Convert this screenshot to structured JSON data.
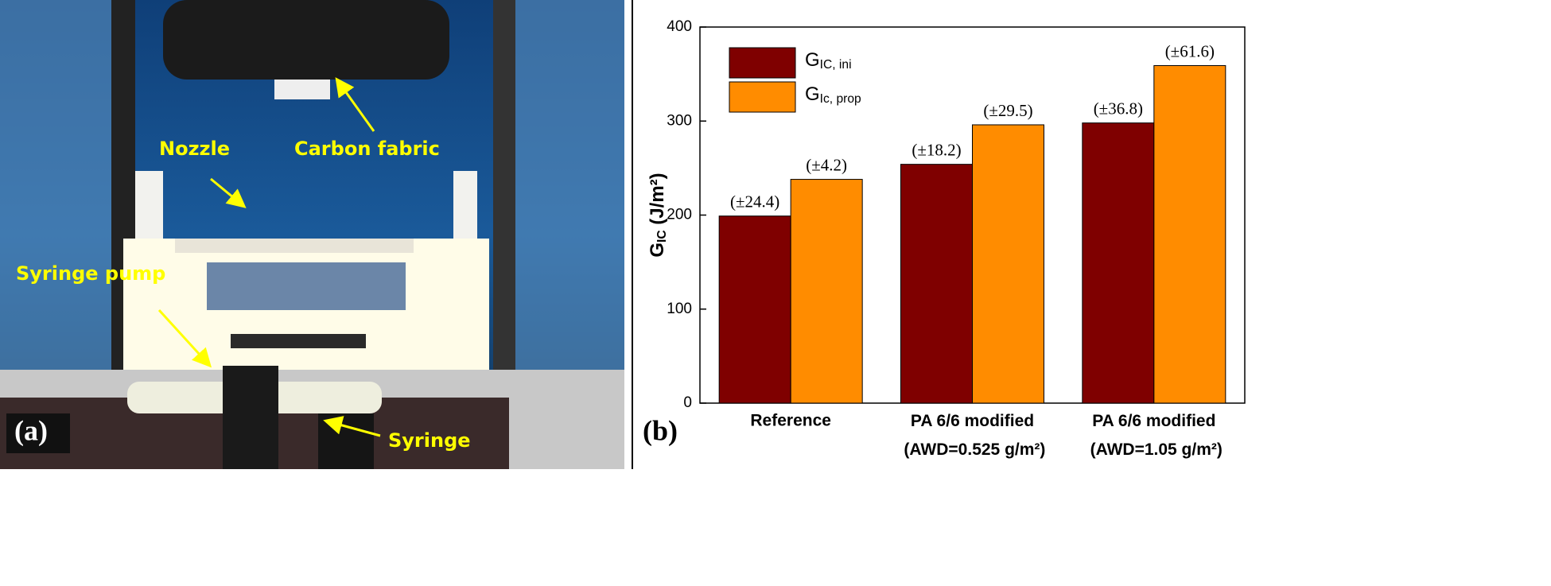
{
  "photo": {
    "label": "(a)",
    "annotations": [
      "Carbon fabric",
      "Nozzle",
      "Syringe pump",
      "Syringe"
    ]
  },
  "chart_data": {
    "type": "bar",
    "panel_label": "(b)",
    "y_label": "GIC (J/m²)",
    "categories": [
      "Reference",
      "PA 6/6 modified (AWD=0.525 g/m²)",
      "PA 6/6 modified (AWD=1.05 g/m²)"
    ],
    "series": [
      {
        "name": "GIC, ini",
        "color": "#7f0000",
        "values": [
          199,
          254,
          298
        ],
        "error_labels": [
          "(±24.4)",
          "(±18.2)",
          "(±36.8)"
        ]
      },
      {
        "name": "GIc, prop",
        "color": "#ff8c00",
        "values": [
          238,
          296,
          359
        ],
        "error_labels": [
          "(±4.2)",
          "(±29.5)",
          "(±61.6)"
        ]
      }
    ],
    "ylim": [
      0,
      400
    ],
    "yticks": [
      0,
      100,
      200,
      300,
      400
    ],
    "legend": "upper left"
  }
}
